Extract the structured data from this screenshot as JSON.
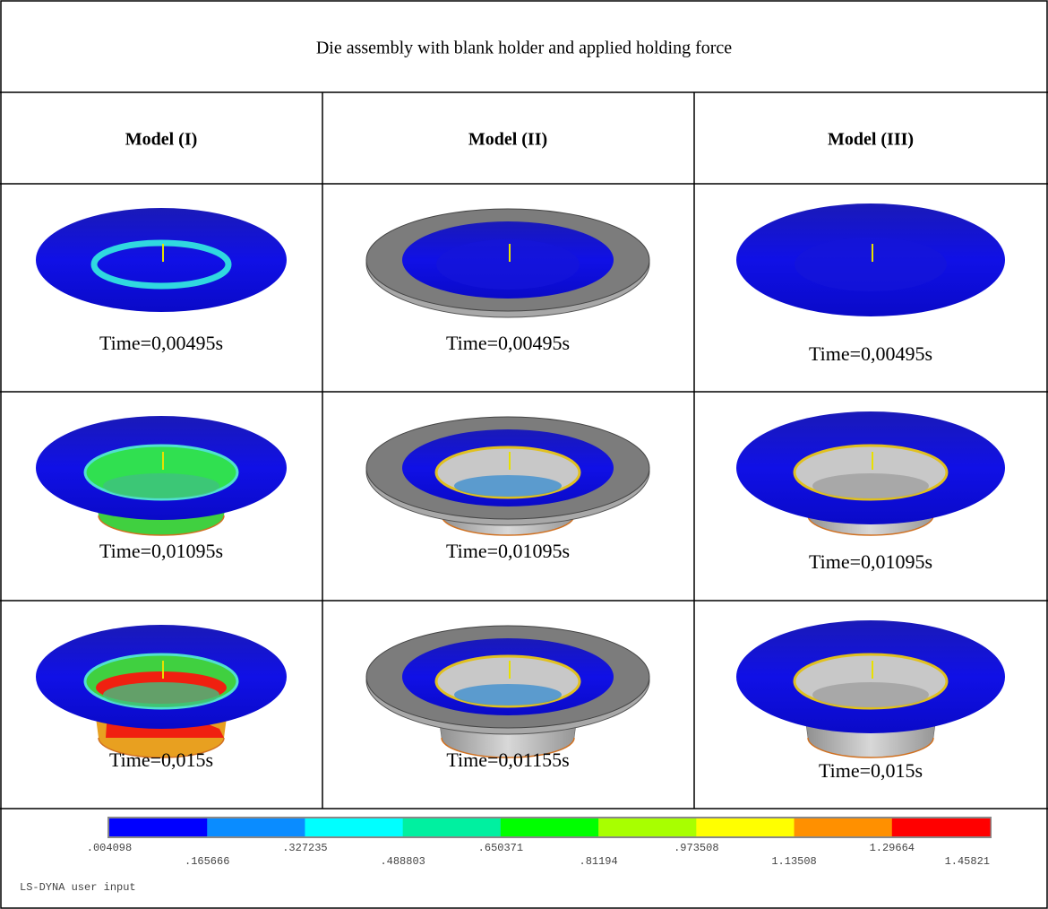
{
  "header": {
    "title": "Die assembly with blank holder and applied holding force"
  },
  "table": {
    "columns": [
      "Model (I)",
      "Model (II)",
      "Model (III)"
    ],
    "rows": [
      [
        "Time=0,00495s",
        "Time=0,00495s",
        "Time=0,00495s"
      ],
      [
        "Time=0,01095s",
        "Time=0,01095s",
        "Time=0,01095s"
      ],
      [
        "Time=0,015s",
        "Time=0,01155s",
        "Time=0,015s"
      ]
    ]
  },
  "legend": {
    "labels": [
      ".004098",
      ".165666",
      ".327235",
      ".488803",
      ".650371",
      ".81194",
      ".973508",
      "1.13508",
      "1.29664",
      "1.45821"
    ],
    "caption": "LS-DYNA user input"
  }
}
